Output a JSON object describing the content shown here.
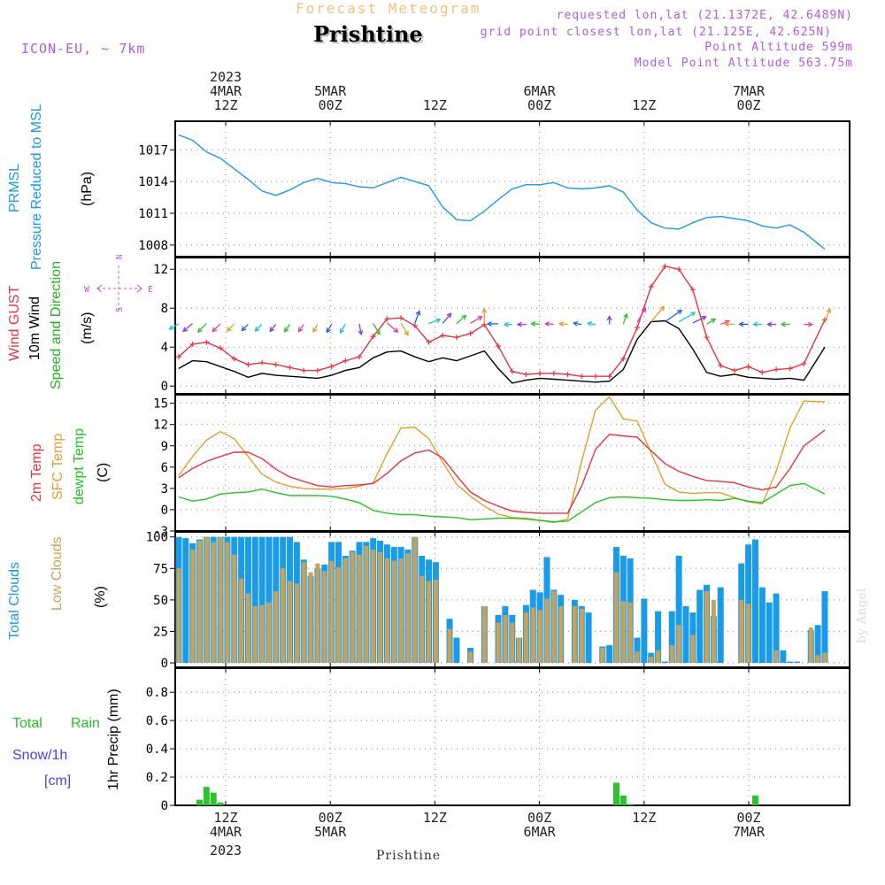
{
  "header": {
    "product": "Forecast Meteogram",
    "city": "Prishtine",
    "model": "ICON-EU, ~ 7km",
    "requested": "requested lon,lat (21.1372E, 42.6489N)",
    "grid_point": "grid point closest lon,lat (21.125E, 42.625N)",
    "point_altitude": "Point Altitude 599m",
    "model_altitude": "Model Point Altitude 563.75m"
  },
  "time_axis": {
    "year": "2023",
    "top_ticks": [
      {
        "day": "4MAR",
        "hour": "12Z"
      },
      {
        "day": "5MAR",
        "hour": "00Z"
      },
      {
        "day": "",
        "hour": "12Z"
      },
      {
        "day": "6MAR",
        "hour": "00Z"
      },
      {
        "day": "",
        "hour": "12Z"
      },
      {
        "day": "7MAR",
        "hour": "00Z"
      }
    ],
    "bottom_ticks": [
      {
        "hour": "12Z",
        "day": "4MAR"
      },
      {
        "hour": "00Z",
        "day": "5MAR"
      },
      {
        "hour": "12Z",
        "day": ""
      },
      {
        "hour": "00Z",
        "day": "6MAR"
      },
      {
        "hour": "12Z",
        "day": ""
      },
      {
        "hour": "00Z",
        "day": "7MAR"
      }
    ],
    "bottom_year": "2023",
    "bottom_city": "Prishtine"
  },
  "labels": {
    "p1_a": "PRMSL",
    "p1_b": "Pressure Reduced to MSL",
    "p1_unit": "(hPa)",
    "p2_a": "Wind GUST",
    "p2_b": "10m Wind",
    "p2_c": "Speed and Direction",
    "p2_unit": "(m/s)",
    "compass_n": "N",
    "compass_s": "S",
    "compass_w": "W",
    "compass_e": "E",
    "p3_a": "2m Temp",
    "p3_b": "SFC Temp",
    "p3_c": "dewpt Temp",
    "p3_unit": "(C)",
    "p4_a": "Total Clouds",
    "p4_b": "Low Clouds",
    "p4_unit": "(%)",
    "p5_a": "Total",
    "p5_b": "Rain",
    "p5_c": "Snow/1h",
    "p5_d": "[cm]",
    "p5_unit": "1hr Precip (mm)",
    "watermark": "by Angel"
  },
  "colors": {
    "pressure": "#1e9ae6",
    "gust": "#e8353f",
    "wind": "#000000",
    "t2m": "#e8353f",
    "tsfc": "#e0a030",
    "dewpt": "#22c422",
    "total_clouds": "#1a9be8",
    "low_clouds": "#c8a25a",
    "rain": "#2ec32e",
    "snow": "#4444ee",
    "purple": "#b05ce0"
  },
  "chart_data": [
    {
      "type": "line",
      "title": "PRMSL Pressure Reduced to MSL",
      "ylabel": "hPa",
      "x_unit": "hours since 2023-03-04 06Z",
      "ylim": [
        1006.9,
        1019.7
      ],
      "yticks": [
        1008,
        1011,
        1014,
        1017
      ],
      "series": [
        {
          "name": "PRMSL",
          "x": [
            0,
            2,
            4,
            6,
            8,
            10,
            12,
            14,
            16,
            18,
            20,
            22,
            24,
            26,
            28,
            30,
            32,
            34,
            36,
            38,
            40,
            42,
            44,
            46,
            48,
            50,
            52,
            54,
            56,
            58,
            60,
            62,
            64,
            66,
            68,
            70,
            72,
            74,
            76,
            78,
            80,
            82,
            84,
            86,
            88,
            90,
            93
          ],
          "values": [
            1018.4,
            1017.9,
            1016.8,
            1016.2,
            1015.2,
            1014.2,
            1013.1,
            1012.7,
            1013.2,
            1013.9,
            1014.3,
            1013.9,
            1013.8,
            1013.5,
            1013.4,
            1013.9,
            1014.4,
            1014.0,
            1013.6,
            1011.6,
            1010.4,
            1010.3,
            1011.2,
            1012.3,
            1013.3,
            1013.7,
            1013.7,
            1013.9,
            1013.4,
            1013.3,
            1013.4,
            1013.6,
            1013.0,
            1011.3,
            1010.1,
            1009.6,
            1009.5,
            1010.1,
            1010.6,
            1010.7,
            1010.5,
            1010.3,
            1009.8,
            1009.6,
            1009.9,
            1009.2,
            1007.6
          ]
        }
      ]
    },
    {
      "type": "line",
      "title": "Wind GUST / 10m Wind Speed and Direction",
      "ylabel": "m/s",
      "x_unit": "hours since 2023-03-04 06Z",
      "ylim": [
        -0.8,
        13.2
      ],
      "yticks": [
        0,
        4,
        8,
        12
      ],
      "series": [
        {
          "name": "Wind GUST",
          "x": [
            0,
            2,
            4,
            6,
            8,
            10,
            12,
            14,
            16,
            18,
            20,
            22,
            24,
            26,
            28,
            30,
            32,
            34,
            36,
            38,
            40,
            42,
            44,
            46,
            48,
            50,
            52,
            54,
            56,
            58,
            60,
            62,
            64,
            66,
            68,
            70,
            72,
            74,
            76,
            78,
            80,
            82,
            84,
            86,
            88,
            90,
            93
          ],
          "values": [
            3.0,
            4.3,
            4.5,
            3.9,
            2.8,
            2.2,
            2.4,
            2.2,
            1.9,
            1.6,
            1.6,
            2.0,
            2.6,
            3.0,
            5.1,
            6.9,
            7.0,
            6.2,
            4.5,
            5.2,
            5.0,
            5.4,
            6.3,
            4.1,
            1.5,
            1.2,
            1.3,
            1.3,
            1.2,
            1.0,
            1.0,
            1.0,
            2.8,
            6.0,
            10.2,
            12.3,
            12.0,
            9.9,
            5.0,
            2.1,
            1.6,
            2.0,
            1.4,
            1.7,
            1.8,
            2.3,
            6.8
          ]
        },
        {
          "name": "10m Wind",
          "x": [
            0,
            2,
            4,
            6,
            8,
            10,
            12,
            14,
            16,
            18,
            20,
            22,
            24,
            26,
            28,
            30,
            32,
            34,
            36,
            38,
            40,
            42,
            44,
            46,
            48,
            50,
            52,
            54,
            56,
            58,
            60,
            62,
            64,
            66,
            68,
            70,
            72,
            74,
            76,
            78,
            80,
            82,
            84,
            86,
            88,
            90,
            93
          ],
          "values": [
            1.8,
            2.6,
            2.5,
            2.0,
            1.5,
            0.9,
            1.3,
            1.1,
            1.0,
            0.9,
            0.8,
            1.1,
            1.6,
            1.9,
            2.9,
            3.5,
            3.6,
            3.0,
            2.5,
            2.9,
            2.6,
            3.1,
            3.6,
            1.8,
            0.3,
            0.6,
            0.8,
            0.7,
            0.6,
            0.5,
            0.4,
            0.5,
            1.7,
            4.8,
            6.6,
            6.7,
            5.9,
            3.8,
            1.4,
            1.0,
            1.2,
            0.9,
            0.8,
            0.7,
            0.8,
            0.6,
            4.0
          ]
        }
      ],
      "wind_direction_from_deg": [
        60,
        50,
        45,
        45,
        45,
        45,
        45,
        40,
        35,
        35,
        30,
        30,
        30,
        350,
        330,
        310,
        330,
        200,
        250,
        220,
        230,
        240,
        180,
        90,
        90,
        90,
        95,
        95,
        95,
        100,
        100,
        180,
        200,
        210,
        220,
        235,
        240,
        245,
        240,
        250,
        90,
        90,
        90,
        90,
        90,
        270,
        200
      ]
    },
    {
      "type": "line",
      "title": "2m Temp / SFC Temp / dewpt Temp",
      "ylabel": "C",
      "x_unit": "hours since 2023-03-04 06Z",
      "ylim": [
        -3,
        16.2
      ],
      "yticks": [
        -3,
        0,
        3,
        6,
        9,
        12,
        15
      ],
      "series": [
        {
          "name": "2m Temp",
          "x": [
            0,
            2,
            4,
            6,
            8,
            10,
            12,
            14,
            16,
            18,
            20,
            22,
            24,
            26,
            28,
            30,
            32,
            34,
            36,
            38,
            40,
            42,
            44,
            46,
            48,
            50,
            52,
            54,
            56,
            58,
            60,
            62,
            64,
            66,
            68,
            70,
            72,
            74,
            76,
            78,
            80,
            82,
            84,
            86,
            88,
            90,
            93
          ],
          "values": [
            4.5,
            5.8,
            6.8,
            7.5,
            8.1,
            8.1,
            7.2,
            5.7,
            4.6,
            4.0,
            3.4,
            3.2,
            3.4,
            3.5,
            3.7,
            5.1,
            6.9,
            8.0,
            8.4,
            7.3,
            4.8,
            2.5,
            1.3,
            0.5,
            -0.2,
            -0.4,
            -0.5,
            -0.5,
            -0.5,
            3.3,
            8.5,
            10.6,
            10.4,
            10.2,
            8.3,
            6.5,
            5.4,
            4.7,
            4.1,
            4.0,
            3.8,
            3.2,
            2.8,
            3.2,
            5.8,
            9.0,
            11.2
          ]
        },
        {
          "name": "SFC Temp",
          "x": [
            0,
            2,
            4,
            6,
            8,
            10,
            12,
            14,
            16,
            18,
            20,
            22,
            24,
            26,
            28,
            30,
            32,
            34,
            36,
            38,
            40,
            42,
            44,
            46,
            48,
            50,
            52,
            54,
            56,
            58,
            60,
            62,
            64,
            66,
            68,
            70,
            72,
            74,
            76,
            78,
            80,
            82,
            84,
            86,
            88,
            90,
            93
          ],
          "values": [
            4.8,
            7.5,
            9.8,
            11.0,
            10.0,
            7.5,
            5.0,
            3.9,
            3.3,
            3.0,
            2.9,
            2.9,
            3.0,
            3.3,
            3.8,
            7.9,
            11.5,
            11.6,
            10.0,
            6.7,
            3.6,
            1.9,
            0.5,
            -0.6,
            -1.1,
            -1.2,
            -1.5,
            -1.8,
            -1.3,
            6.8,
            14.0,
            15.9,
            12.8,
            12.5,
            8.0,
            3.6,
            2.5,
            2.3,
            2.4,
            2.4,
            1.7,
            1.1,
            0.8,
            5.4,
            11.5,
            15.3,
            15.2
          ]
        },
        {
          "name": "dewpt Temp",
          "x": [
            0,
            2,
            4,
            6,
            8,
            10,
            12,
            14,
            16,
            18,
            20,
            22,
            24,
            26,
            28,
            30,
            32,
            34,
            36,
            38,
            40,
            42,
            44,
            46,
            48,
            50,
            52,
            54,
            56,
            58,
            60,
            62,
            64,
            66,
            68,
            70,
            72,
            74,
            76,
            78,
            80,
            82,
            84,
            86,
            88,
            90,
            93
          ],
          "values": [
            1.8,
            1.2,
            1.5,
            2.2,
            2.4,
            2.5,
            2.9,
            2.4,
            2.0,
            2.0,
            2.0,
            1.9,
            1.5,
            1.0,
            -0.1,
            -0.5,
            -0.7,
            -0.7,
            -0.9,
            -1.0,
            -1.1,
            -1.4,
            -1.3,
            -1.2,
            -1.2,
            -1.3,
            -1.5,
            -1.7,
            -1.6,
            -0.3,
            1.0,
            1.7,
            1.8,
            1.7,
            1.6,
            1.4,
            1.3,
            1.3,
            1.4,
            1.3,
            1.6,
            1.2,
            1.0,
            2.2,
            3.4,
            3.7,
            2.2
          ]
        }
      ]
    },
    {
      "type": "bar",
      "title": "Total Clouds / Low Clouds",
      "ylabel": "%",
      "x_unit": "hours since 2023-03-04 06Z",
      "ylim": [
        -3.5,
        104
      ],
      "yticks": [
        0,
        25,
        50,
        75,
        100
      ],
      "x": [
        0,
        1,
        2,
        3,
        4,
        5,
        6,
        7,
        8,
        9,
        10,
        11,
        12,
        13,
        14,
        15,
        16,
        17,
        18,
        19,
        20,
        21,
        22,
        23,
        24,
        25,
        26,
        27,
        28,
        29,
        30,
        31,
        32,
        33,
        34,
        35,
        36,
        37,
        38,
        39,
        40,
        41,
        42,
        43,
        44,
        45,
        46,
        47,
        48,
        49,
        50,
        51,
        52,
        53,
        54,
        55,
        56,
        57,
        58,
        59,
        60,
        61,
        62,
        63,
        64,
        65,
        66,
        67,
        68,
        69,
        70,
        71,
        72,
        73,
        74,
        75,
        76,
        77,
        78,
        79,
        80,
        81,
        82,
        83,
        84,
        85,
        86,
        87,
        88,
        89,
        90,
        91,
        92,
        93
      ],
      "series": [
        {
          "name": "Total Clouds",
          "values": [
            100,
            99,
            95,
            98,
            100,
            100,
            100,
            100,
            100,
            100,
            100,
            100,
            100,
            100,
            100,
            100,
            100,
            96,
            82,
            69,
            75,
            78,
            96,
            96,
            85,
            89,
            96,
            96,
            99,
            97,
            94,
            92,
            92,
            90,
            100,
            85,
            82,
            80,
            0,
            35,
            20,
            0,
            12,
            0,
            45,
            0,
            38,
            45,
            38,
            20,
            46,
            58,
            56,
            84,
            58,
            54,
            0,
            50,
            45,
            40,
            0,
            13,
            14,
            92,
            85,
            83,
            20,
            51,
            8,
            41,
            1,
            41,
            85,
            45,
            40,
            58,
            62,
            37,
            60,
            0,
            0,
            79,
            94,
            98,
            60,
            48,
            55,
            10,
            1,
            1,
            0,
            26,
            30,
            57
          ]
        },
        {
          "name": "Low Clouds",
          "values": [
            75,
            0,
            90,
            97,
            100,
            96,
            100,
            96,
            86,
            67,
            55,
            45,
            46,
            48,
            57,
            75,
            65,
            63,
            80,
            72,
            79,
            73,
            81,
            76,
            83,
            88,
            86,
            93,
            90,
            88,
            83,
            81,
            83,
            87,
            100,
            69,
            65,
            66,
            0,
            27,
            0,
            0,
            9,
            0,
            45,
            0,
            32,
            38,
            32,
            20,
            40,
            44,
            42,
            51,
            57,
            45,
            0,
            45,
            43,
            0,
            0,
            12,
            0,
            72,
            49,
            48,
            9,
            0,
            5,
            10,
            0,
            14,
            30,
            0,
            22,
            0,
            57,
            50,
            0,
            0,
            0,
            50,
            47,
            0,
            0,
            0,
            10,
            0,
            0,
            0,
            0,
            28,
            6,
            8
          ]
        }
      ]
    },
    {
      "type": "bar",
      "title": "1hr Precip",
      "ylabel": "mm",
      "x_unit": "hours since 2023-03-04 06Z",
      "ylim": [
        0,
        0.97
      ],
      "yticks": [
        0,
        0.2,
        0.4,
        0.6,
        0.8
      ],
      "series": [
        {
          "name": "Total Rain",
          "x": [
            3,
            4,
            5,
            6,
            63,
            64,
            65,
            83
          ],
          "values": [
            0.04,
            0.13,
            0.09,
            0.02,
            0.16,
            0.07,
            0.01,
            0.07
          ]
        },
        {
          "name": "Snow/1h",
          "x": [],
          "values": []
        }
      ]
    }
  ]
}
